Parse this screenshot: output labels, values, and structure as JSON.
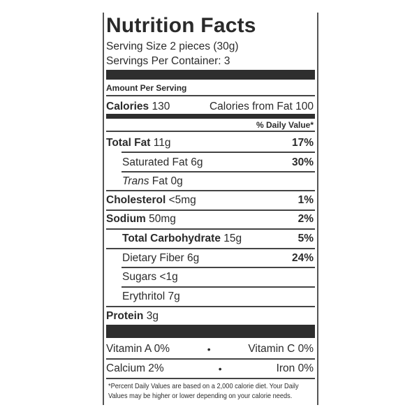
{
  "title": "Nutrition Facts",
  "serving_size": "Serving Size 2 pieces (30g)",
  "servings_per_container": "Servings Per Container: 3",
  "amount_per_serving": "Amount Per Serving",
  "calories": {
    "label": "Calories",
    "value": "130",
    "from_fat": "Calories from Fat 100"
  },
  "daily_value_header": "% Daily Value*",
  "nutrients": [
    {
      "name": "Total Fat",
      "amount": "11g",
      "dv": "17%"
    },
    {
      "name": "Saturated Fat",
      "amount": "6g",
      "dv": "30%"
    },
    {
      "name": "Trans",
      "name_rest": "Fat",
      "amount": "0g",
      "dv": ""
    },
    {
      "name": "Cholesterol",
      "amount": "<5mg",
      "dv": "1%"
    },
    {
      "name": "Sodium",
      "amount": "50mg",
      "dv": "2%"
    },
    {
      "name": "Total Carbohydrate",
      "amount": "15g",
      "dv": "5%"
    },
    {
      "name": "Dietary Fiber",
      "amount": "6g",
      "dv": "24%"
    },
    {
      "name": "Sugars",
      "amount": "<1g",
      "dv": ""
    },
    {
      "name": "Erythritol",
      "amount": "7g",
      "dv": ""
    },
    {
      "name": "Protein",
      "amount": "3g",
      "dv": ""
    }
  ],
  "vitamins": [
    {
      "left": "Vitamin A 0%",
      "sep": "•",
      "right": "Vitamin C 0%"
    },
    {
      "left": "Calcium 2%",
      "sep": "•",
      "right": "Iron 0%"
    }
  ],
  "footnote": [
    "*Percent Daily Values are based on a 2,000 calorie diet. Your Daily",
    " Values may be higher or lower depending on your calorie needs."
  ]
}
